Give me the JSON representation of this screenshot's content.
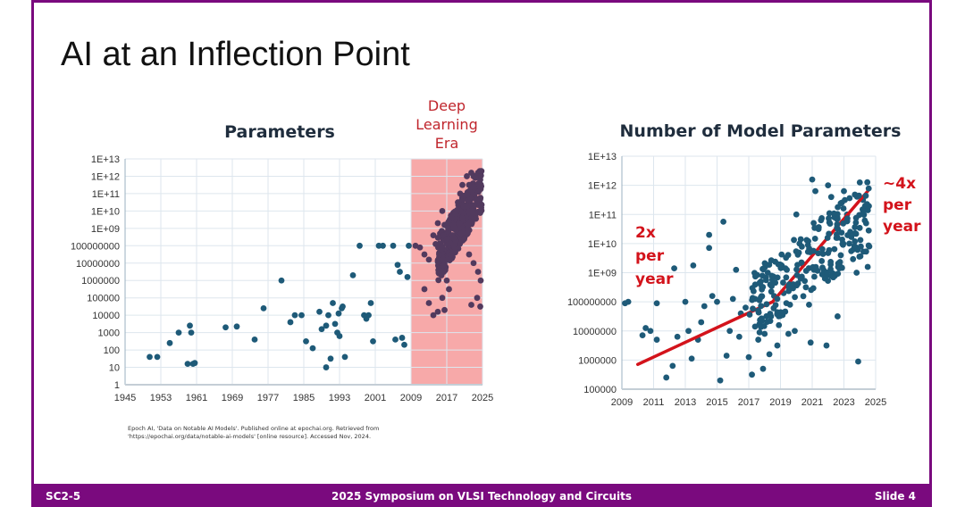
{
  "slide": {
    "title": "AI at an Inflection Point",
    "citation_line1": "Epoch AI, 'Data on Notable AI Models'. Published online at epochai.org. Retrieved from",
    "citation_line2": "'https://epochai.org/data/notable-ai-models' [online resource]. Accessed Nov, 2024.",
    "footer": {
      "left": "SC2-5",
      "center": "2025 Symposium on VLSI Technology and Circuits",
      "right": "Slide 4"
    },
    "colors": {
      "frame": "#7a0a7e",
      "dots": "#1e5a78",
      "dl_dots": "#523a5e",
      "era_band": "#f7a9a9",
      "trend": "#d3131b",
      "grid": "#dde6ee"
    }
  },
  "chart_data": [
    {
      "type": "scatter",
      "title": "Parameters",
      "xlabel": "",
      "ylabel": "",
      "x_scale": "linear",
      "y_scale": "log10",
      "xlim": [
        1945,
        2025
      ],
      "ylim_log10": [
        0,
        13
      ],
      "x_ticks": [
        "1945",
        "1953",
        "1961",
        "1969",
        "1977",
        "1985",
        "1993",
        "2001",
        "2009",
        "2017",
        "2025"
      ],
      "y_ticks": [
        "1",
        "10",
        "100",
        "1000",
        "10000",
        "100000",
        "1000000",
        "10000000",
        "100000000",
        "1E+09",
        "1E+10",
        "1E+11",
        "1E+12",
        "1E+13"
      ],
      "grid": true,
      "annotation": {
        "lines": [
          "Deep",
          "Learning",
          "Era"
        ],
        "x_range": [
          2009,
          2025
        ]
      },
      "points_log10": [
        [
          1950.5,
          1.6
        ],
        [
          1952.2,
          1.6
        ],
        [
          1955,
          2.4
        ],
        [
          1957,
          3.0
        ],
        [
          1959.5,
          3.4
        ],
        [
          1959.8,
          3.0
        ],
        [
          1960.2,
          1.2
        ],
        [
          1959,
          1.2
        ],
        [
          1960.6,
          1.25
        ],
        [
          1967.5,
          3.3
        ],
        [
          1970,
          3.35
        ],
        [
          1974,
          2.6
        ],
        [
          1976,
          4.4
        ],
        [
          1980,
          6.0
        ],
        [
          1982,
          3.6
        ],
        [
          1983,
          4.0
        ],
        [
          1984.5,
          4.0
        ],
        [
          1985.5,
          2.5
        ],
        [
          1987,
          2.1
        ],
        [
          1988.5,
          4.2
        ],
        [
          1989,
          3.2
        ],
        [
          1990,
          1.0
        ],
        [
          1990.5,
          4.0
        ],
        [
          1991.5,
          4.7
        ],
        [
          1992,
          3.5
        ],
        [
          1990,
          3.4
        ],
        [
          1991,
          1.5
        ],
        [
          1992.5,
          3.0
        ],
        [
          1993,
          2.8
        ],
        [
          1993.5,
          4.4
        ],
        [
          1993.7,
          4.5
        ],
        [
          1994.2,
          1.6
        ],
        [
          1992.8,
          4.1
        ],
        [
          1996,
          6.3
        ],
        [
          1997.5,
          8.0
        ],
        [
          1999,
          3.8
        ],
        [
          1999.5,
          4.0
        ],
        [
          1998.5,
          4.0
        ],
        [
          2000,
          4.7
        ],
        [
          2000.5,
          2.5
        ],
        [
          2005,
          8.0
        ],
        [
          2006,
          6.9
        ],
        [
          2006.5,
          6.5
        ],
        [
          2008.5,
          8.0
        ],
        [
          2008.2,
          6.2
        ],
        [
          2007,
          2.7
        ],
        [
          2007.5,
          2.3
        ],
        [
          2005.5,
          2.6
        ],
        [
          2002.7,
          8.0
        ],
        [
          2001.8,
          8.0
        ]
      ],
      "dl_points_log10": [
        [
          2010,
          8.0
        ],
        [
          2011,
          7.9
        ],
        [
          2012,
          7.5
        ],
        [
          2013,
          7.2
        ],
        [
          2014,
          8.6
        ],
        [
          2014.5,
          8.1
        ],
        [
          2015,
          9.3
        ],
        [
          2015.5,
          8.7
        ],
        [
          2016,
          10.0
        ],
        [
          2016.5,
          9.2
        ],
        [
          2012,
          5.5
        ],
        [
          2013,
          4.7
        ],
        [
          2014,
          4.0
        ],
        [
          2015,
          4.2
        ],
        [
          2016,
          5.0
        ],
        [
          2016.5,
          4.3
        ],
        [
          2017,
          6.0
        ],
        [
          2017.5,
          5.5
        ],
        [
          2018,
          7.5
        ],
        [
          2018.5,
          8.5
        ],
        [
          2019,
          9.5
        ],
        [
          2019.5,
          10.5
        ],
        [
          2020,
          11.0
        ],
        [
          2020.5,
          11.5
        ],
        [
          2021,
          10.0
        ],
        [
          2021.5,
          12.0
        ],
        [
          2022,
          11.5
        ],
        [
          2022.5,
          12.2
        ],
        [
          2023,
          12.0
        ],
        [
          2023.5,
          11.3
        ],
        [
          2024,
          12.2
        ],
        [
          2024.5,
          11.8
        ],
        [
          2021,
          8.5
        ],
        [
          2022,
          7.5
        ],
        [
          2023,
          7.0
        ],
        [
          2024,
          6.5
        ],
        [
          2024.5,
          4.5
        ],
        [
          2024.6,
          6.0
        ],
        [
          2022.5,
          4.6
        ],
        [
          2023.8,
          5.0
        ]
      ]
    },
    {
      "type": "scatter",
      "title": "Number of Model Parameters",
      "xlabel": "",
      "ylabel": "",
      "x_scale": "linear",
      "y_scale": "log10",
      "xlim": [
        2009,
        2025
      ],
      "ylim_log10": [
        5,
        13
      ],
      "x_ticks": [
        "2009",
        "2011",
        "2013",
        "2015",
        "2017",
        "2019",
        "2021",
        "2023",
        "2025"
      ],
      "y_ticks": [
        "100000",
        "1000000",
        "10000000",
        "100000000",
        "1E+09",
        "1E+10",
        "1E+11",
        "1E+12",
        "1E+13"
      ],
      "grid": true,
      "annotations": [
        {
          "lines": [
            "2x",
            "per",
            "year"
          ],
          "position": "left"
        },
        {
          "lines": [
            "~4x",
            "per",
            "year"
          ],
          "position": "top-right"
        }
      ],
      "trend_lines_log10": [
        {
          "label": "2x per year",
          "points": [
            [
              2010,
              5.85
            ],
            [
              2018.5,
              8.0
            ]
          ]
        },
        {
          "label": "~4x per year",
          "points": [
            [
              2018.5,
              8.0
            ],
            [
              2024.5,
              11.8
            ]
          ]
        }
      ],
      "points_log10": [
        [
          2009.2,
          7.95
        ],
        [
          2009.4,
          8.0
        ],
        [
          2010.5,
          7.1
        ],
        [
          2010.8,
          7.0
        ],
        [
          2010.3,
          6.85
        ],
        [
          2011.2,
          6.7
        ],
        [
          2011.2,
          7.95
        ],
        [
          2011.8,
          5.4
        ],
        [
          2012.3,
          9.15
        ],
        [
          2012.5,
          6.8
        ],
        [
          2013,
          8.0
        ],
        [
          2013.2,
          7.0
        ],
        [
          2013.5,
          9.25
        ],
        [
          2013.8,
          6.7
        ],
        [
          2014,
          7.3
        ],
        [
          2014.2,
          7.85
        ],
        [
          2014.5,
          9.85
        ],
        [
          2014.5,
          10.3
        ],
        [
          2014.7,
          8.2
        ],
        [
          2015,
          8.0
        ],
        [
          2015.2,
          5.3
        ],
        [
          2015.4,
          10.75
        ],
        [
          2015.6,
          6.15
        ],
        [
          2015.8,
          7.0
        ],
        [
          2016,
          8.1
        ],
        [
          2016.2,
          9.1
        ],
        [
          2016.5,
          7.6
        ],
        [
          2016.8,
          7.8
        ],
        [
          2017,
          6.1
        ],
        [
          2017.2,
          5.5
        ],
        [
          2017.4,
          8.1
        ],
        [
          2017.6,
          6.7
        ],
        [
          2017.8,
          7.4
        ],
        [
          2018,
          6.9
        ],
        [
          2018.2,
          9.0
        ],
        [
          2018.4,
          7.5
        ],
        [
          2018.6,
          8.2
        ],
        [
          2018.8,
          6.5
        ],
        [
          2019,
          7.6
        ],
        [
          2019.2,
          8.3
        ],
        [
          2019.4,
          9.1
        ],
        [
          2019.6,
          7.9
        ],
        [
          2019.8,
          8.6
        ],
        [
          2020,
          11.0
        ],
        [
          2020.2,
          10.0
        ],
        [
          2020.4,
          9.3
        ],
        [
          2020.6,
          8.5
        ],
        [
          2020.8,
          7.9
        ],
        [
          2021,
          12.2
        ],
        [
          2021.2,
          11.8
        ],
        [
          2021.4,
          10.5
        ],
        [
          2021.6,
          9.4
        ],
        [
          2021.8,
          8.8
        ],
        [
          2022,
          12.0
        ],
        [
          2022.2,
          11.6
        ],
        [
          2022.4,
          10.9
        ],
        [
          2022.6,
          10.2
        ],
        [
          2022.8,
          9.6
        ],
        [
          2023,
          11.8
        ],
        [
          2023.2,
          11.0
        ],
        [
          2023.4,
          10.4
        ],
        [
          2023.6,
          9.8
        ],
        [
          2023.8,
          9.0
        ],
        [
          2024,
          12.1
        ],
        [
          2024.2,
          11.5
        ],
        [
          2024.4,
          10.7
        ],
        [
          2024.6,
          9.9
        ],
        [
          2024.5,
          9.2
        ],
        [
          2023.9,
          5.95
        ],
        [
          2022.6,
          7.5
        ],
        [
          2021.9,
          6.5
        ],
        [
          2020.9,
          6.6
        ],
        [
          2019.9,
          7.0
        ],
        [
          2019.5,
          6.9
        ],
        [
          2018.9,
          7.2
        ],
        [
          2016.4,
          6.8
        ],
        [
          2017.9,
          5.7
        ],
        [
          2018.3,
          6.2
        ],
        [
          2013.4,
          6.05
        ],
        [
          2012.2,
          5.8
        ]
      ]
    }
  ]
}
